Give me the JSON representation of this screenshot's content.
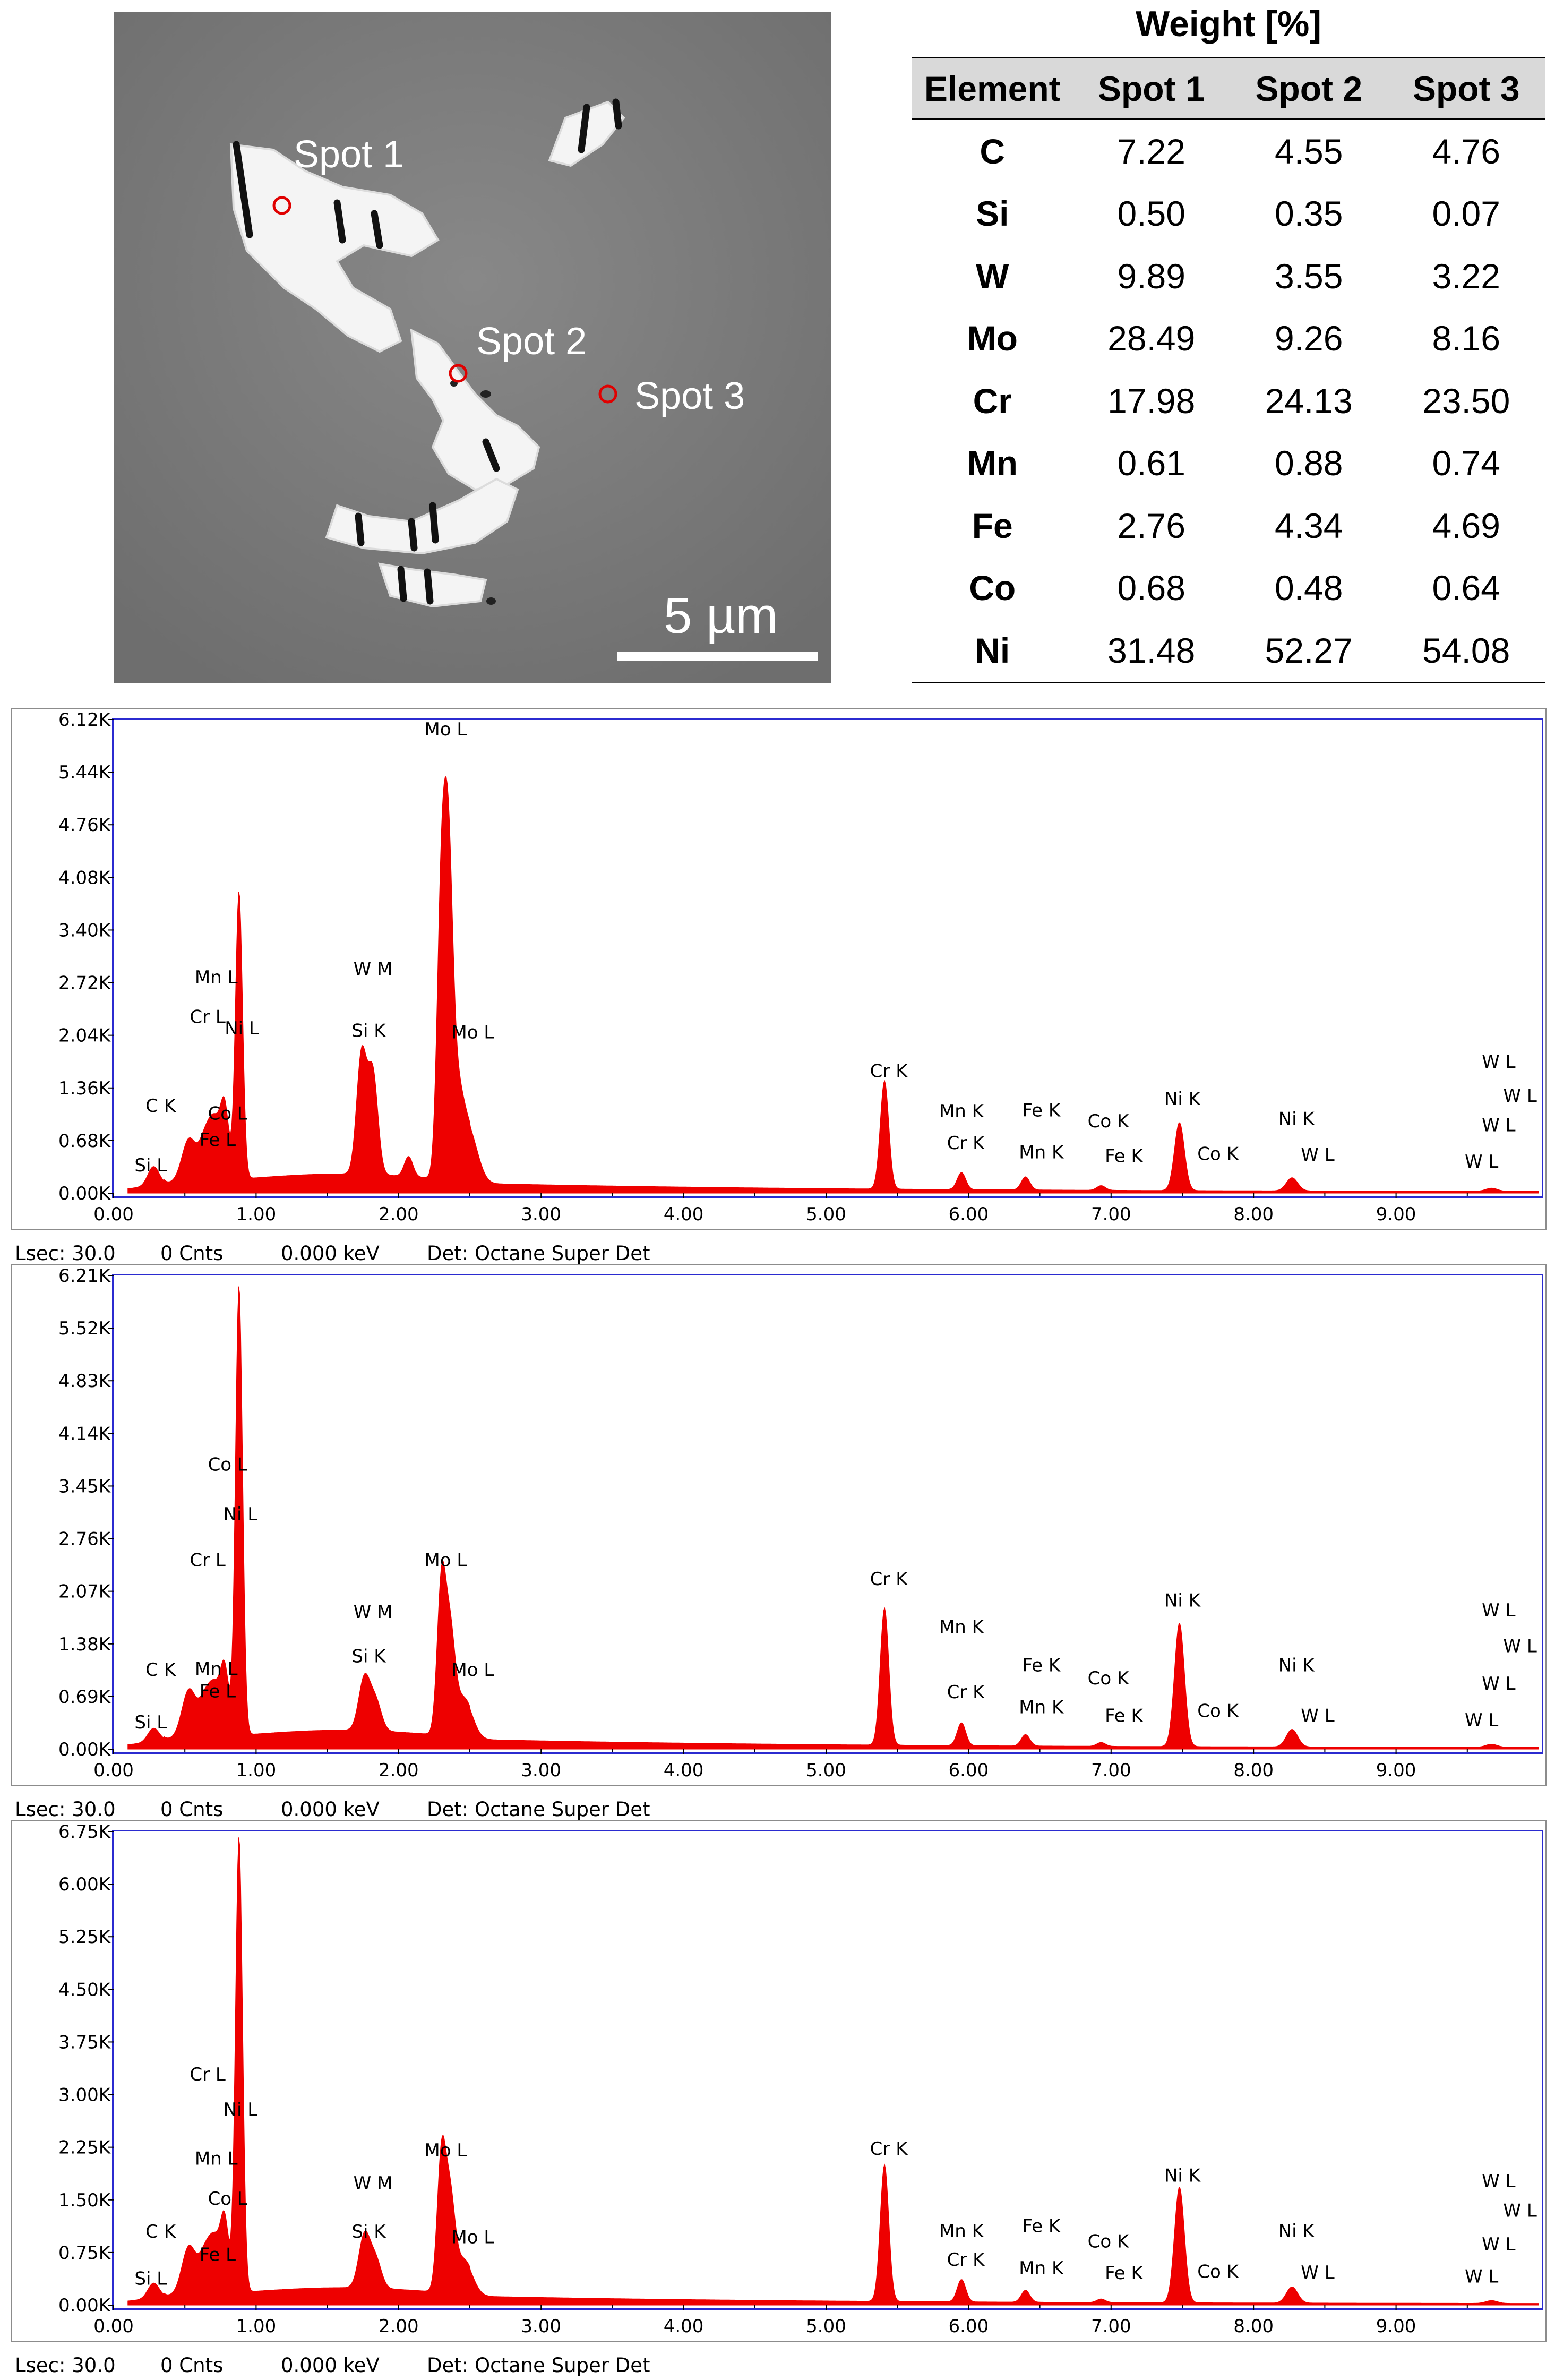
{
  "micrograph": {
    "spot_labels": [
      "Spot 1",
      "Spot 2",
      "Spot 3"
    ],
    "scale_label": "5 µm"
  },
  "composition_table": {
    "title": "Weight [%]",
    "headers": [
      "Element",
      "Spot 1",
      "Spot 2",
      "Spot 3"
    ],
    "rows": [
      [
        "C",
        "7.22",
        "4.55",
        "4.76"
      ],
      [
        "Si",
        "0.50",
        "0.35",
        "0.07"
      ],
      [
        "W",
        "9.89",
        "3.55",
        "3.22"
      ],
      [
        "Mo",
        "28.49",
        "9.26",
        "8.16"
      ],
      [
        "Cr",
        "17.98",
        "24.13",
        "23.50"
      ],
      [
        "Mn",
        "0.61",
        "0.88",
        "0.74"
      ],
      [
        "Fe",
        "2.76",
        "4.34",
        "4.69"
      ],
      [
        "Co",
        "0.68",
        "0.48",
        "0.64"
      ],
      [
        "Ni",
        "31.48",
        "52.27",
        "54.08"
      ]
    ]
  },
  "chart_data": [
    {
      "type": "area",
      "x_ticks": [
        "0.00",
        "1.00",
        "2.00",
        "3.00",
        "4.00",
        "5.00",
        "6.00",
        "7.00",
        "8.00",
        "9.00"
      ],
      "y_ticks": [
        "0.00K",
        "0.68K",
        "1.36K",
        "2.04K",
        "2.72K",
        "3.40K",
        "4.08K",
        "4.76K",
        "5.44K",
        "6.12K"
      ],
      "xlim": [
        0,
        10
      ],
      "ylim": [
        0,
        6120
      ],
      "color": "#ee0000",
      "peaks": [
        {
          "x": 0.28,
          "y": 250,
          "w": 0.04
        },
        {
          "x": 0.53,
          "y": 560,
          "w": 0.05
        },
        {
          "x": 0.64,
          "y": 500,
          "w": 0.04
        },
        {
          "x": 0.71,
          "y": 700,
          "w": 0.04
        },
        {
          "x": 0.78,
          "y": 900,
          "w": 0.03
        },
        {
          "x": 0.88,
          "y": 3720,
          "w": 0.025
        },
        {
          "x": 1.74,
          "y": 1550,
          "w": 0.035
        },
        {
          "x": 1.82,
          "y": 1300,
          "w": 0.035
        },
        {
          "x": 2.07,
          "y": 260,
          "w": 0.03
        },
        {
          "x": 2.3,
          "y": 3500,
          "w": 0.03
        },
        {
          "x": 2.35,
          "y": 3300,
          "w": 0.03
        },
        {
          "x": 2.4,
          "y": 1150,
          "w": 0.05
        },
        {
          "x": 2.5,
          "y": 600,
          "w": 0.06
        },
        {
          "x": 5.41,
          "y": 1400,
          "w": 0.03
        },
        {
          "x": 5.95,
          "y": 220,
          "w": 0.03
        },
        {
          "x": 6.4,
          "y": 170,
          "w": 0.03
        },
        {
          "x": 6.93,
          "y": 60,
          "w": 0.03
        },
        {
          "x": 7.48,
          "y": 880,
          "w": 0.035
        },
        {
          "x": 8.27,
          "y": 170,
          "w": 0.04
        },
        {
          "x": 9.67,
          "y": 40,
          "w": 0.04
        }
      ],
      "annotations": [
        {
          "text": "Mo L",
          "x": 2.33,
          "y": 6250
        },
        {
          "text": "Mn L",
          "x": 0.72,
          "y": 2710
        },
        {
          "text": "Cr L",
          "x": 0.66,
          "y": 2200
        },
        {
          "text": "Ni L",
          "x": 0.9,
          "y": 2050
        },
        {
          "text": "W  M",
          "x": 1.82,
          "y": 2820
        },
        {
          "text": "Si K",
          "x": 1.79,
          "y": 2020
        },
        {
          "text": "Mo L",
          "x": 2.52,
          "y": 2000
        },
        {
          "text": "C  K",
          "x": 0.33,
          "y": 1050
        },
        {
          "text": "Co L",
          "x": 0.8,
          "y": 950
        },
        {
          "text": "Fe L",
          "x": 0.73,
          "y": 610
        },
        {
          "text": "Si L",
          "x": 0.26,
          "y": 280
        },
        {
          "text": "Cr K",
          "x": 5.44,
          "y": 1500
        },
        {
          "text": "Mn K",
          "x": 5.95,
          "y": 980
        },
        {
          "text": "Cr K",
          "x": 5.98,
          "y": 570
        },
        {
          "text": "Fe K",
          "x": 6.51,
          "y": 990
        },
        {
          "text": "Mn K",
          "x": 6.51,
          "y": 450
        },
        {
          "text": "Co K",
          "x": 6.98,
          "y": 850
        },
        {
          "text": "Fe K",
          "x": 7.09,
          "y": 400
        },
        {
          "text": "Ni K",
          "x": 7.5,
          "y": 1140
        },
        {
          "text": "Co K",
          "x": 7.75,
          "y": 430
        },
        {
          "text": "Ni K",
          "x": 8.3,
          "y": 880
        },
        {
          "text": "W  L",
          "x": 8.45,
          "y": 420
        },
        {
          "text": "W  L",
          "x": 9.72,
          "y": 1620
        },
        {
          "text": "W  L",
          "x": 9.87,
          "y": 1180
        },
        {
          "text": "W  L",
          "x": 9.72,
          "y": 800
        },
        {
          "text": "W  L",
          "x": 9.6,
          "y": 330
        }
      ],
      "footer": {
        "lsec": "Lsec: 30.0",
        "cnts": "0 Cnts",
        "kev": "0.000 keV",
        "det": "Det: Octane Super Det"
      }
    },
    {
      "type": "area",
      "x_ticks": [
        "0.00",
        "1.00",
        "2.00",
        "3.00",
        "4.00",
        "5.00",
        "6.00",
        "7.00",
        "8.00",
        "9.00"
      ],
      "y_ticks": [
        "0.00K",
        "0.69K",
        "1.38K",
        "2.07K",
        "2.76K",
        "3.45K",
        "4.14K",
        "4.83K",
        "5.52K",
        "6.21K"
      ],
      "xlim": [
        0,
        10
      ],
      "ylim": [
        0,
        6210
      ],
      "color": "#ee0000",
      "peaks": [
        {
          "x": 0.28,
          "y": 180,
          "w": 0.04
        },
        {
          "x": 0.53,
          "y": 640,
          "w": 0.05
        },
        {
          "x": 0.64,
          "y": 450,
          "w": 0.04
        },
        {
          "x": 0.71,
          "y": 600,
          "w": 0.04
        },
        {
          "x": 0.78,
          "y": 850,
          "w": 0.03
        },
        {
          "x": 0.88,
          "y": 5900,
          "w": 0.025
        },
        {
          "x": 1.76,
          "y": 690,
          "w": 0.04
        },
        {
          "x": 1.84,
          "y": 380,
          "w": 0.04
        },
        {
          "x": 2.3,
          "y": 1900,
          "w": 0.03
        },
        {
          "x": 2.36,
          "y": 1300,
          "w": 0.035
        },
        {
          "x": 2.46,
          "y": 500,
          "w": 0.06
        },
        {
          "x": 5.41,
          "y": 1800,
          "w": 0.03
        },
        {
          "x": 5.95,
          "y": 300,
          "w": 0.03
        },
        {
          "x": 6.4,
          "y": 150,
          "w": 0.03
        },
        {
          "x": 6.93,
          "y": 50,
          "w": 0.03
        },
        {
          "x": 7.48,
          "y": 1620,
          "w": 0.035
        },
        {
          "x": 8.27,
          "y": 230,
          "w": 0.04
        },
        {
          "x": 9.67,
          "y": 40,
          "w": 0.04
        }
      ],
      "annotations": [
        {
          "text": "Co L",
          "x": 0.8,
          "y": 3650
        },
        {
          "text": "Ni L",
          "x": 0.89,
          "y": 3000
        },
        {
          "text": "Cr L",
          "x": 0.66,
          "y": 2400
        },
        {
          "text": "Mo L",
          "x": 2.33,
          "y": 2400
        },
        {
          "text": "W  M",
          "x": 1.82,
          "y": 1720
        },
        {
          "text": "C  K",
          "x": 0.33,
          "y": 960
        },
        {
          "text": "Mn L",
          "x": 0.72,
          "y": 970
        },
        {
          "text": "Fe L",
          "x": 0.73,
          "y": 680
        },
        {
          "text": "Si K",
          "x": 1.79,
          "y": 1140
        },
        {
          "text": "Mo L",
          "x": 2.52,
          "y": 960
        },
        {
          "text": "Si L",
          "x": 0.26,
          "y": 270
        },
        {
          "text": "Cr K",
          "x": 5.44,
          "y": 2150
        },
        {
          "text": "Mn K",
          "x": 5.95,
          "y": 1520
        },
        {
          "text": "Cr K",
          "x": 5.98,
          "y": 670
        },
        {
          "text": "Fe K",
          "x": 6.51,
          "y": 1020
        },
        {
          "text": "Mn K",
          "x": 6.51,
          "y": 470
        },
        {
          "text": "Co K",
          "x": 6.98,
          "y": 850
        },
        {
          "text": "Fe K",
          "x": 7.09,
          "y": 360
        },
        {
          "text": "Ni K",
          "x": 7.5,
          "y": 1870
        },
        {
          "text": "Co K",
          "x": 7.75,
          "y": 420
        },
        {
          "text": "Ni K",
          "x": 8.3,
          "y": 1020
        },
        {
          "text": "W  L",
          "x": 8.45,
          "y": 360
        },
        {
          "text": "W  L",
          "x": 9.72,
          "y": 1740
        },
        {
          "text": "W  L",
          "x": 9.87,
          "y": 1270
        },
        {
          "text": "W  L",
          "x": 9.72,
          "y": 780
        },
        {
          "text": "W  L",
          "x": 9.6,
          "y": 300
        }
      ],
      "footer": {
        "lsec": "Lsec: 30.0",
        "cnts": "0 Cnts",
        "kev": "0.000 keV",
        "det": "Det: Octane Super Det"
      }
    },
    {
      "type": "area",
      "x_ticks": [
        "0.00",
        "1.00",
        "2.00",
        "3.00",
        "4.00",
        "5.00",
        "6.00",
        "7.00",
        "8.00",
        "9.00"
      ],
      "y_ticks": [
        "0.00K",
        "0.75K",
        "1.50K",
        "2.25K",
        "3.00K",
        "3.75K",
        "4.50K",
        "5.25K",
        "6.00K",
        "6.75K"
      ],
      "xlim": [
        0,
        10
      ],
      "ylim": [
        0,
        6750
      ],
      "color": "#ee0000",
      "peaks": [
        {
          "x": 0.28,
          "y": 220,
          "w": 0.04
        },
        {
          "x": 0.53,
          "y": 700,
          "w": 0.05
        },
        {
          "x": 0.64,
          "y": 520,
          "w": 0.04
        },
        {
          "x": 0.71,
          "y": 700,
          "w": 0.04
        },
        {
          "x": 0.78,
          "y": 1000,
          "w": 0.03
        },
        {
          "x": 0.88,
          "y": 6500,
          "w": 0.025
        },
        {
          "x": 1.76,
          "y": 750,
          "w": 0.04
        },
        {
          "x": 1.84,
          "y": 400,
          "w": 0.04
        },
        {
          "x": 2.3,
          "y": 1850,
          "w": 0.03
        },
        {
          "x": 2.36,
          "y": 1300,
          "w": 0.035
        },
        {
          "x": 2.46,
          "y": 480,
          "w": 0.06
        },
        {
          "x": 5.41,
          "y": 1950,
          "w": 0.03
        },
        {
          "x": 5.95,
          "y": 320,
          "w": 0.03
        },
        {
          "x": 6.4,
          "y": 170,
          "w": 0.03
        },
        {
          "x": 6.93,
          "y": 50,
          "w": 0.03
        },
        {
          "x": 7.48,
          "y": 1650,
          "w": 0.035
        },
        {
          "x": 8.27,
          "y": 230,
          "w": 0.04
        },
        {
          "x": 9.67,
          "y": 40,
          "w": 0.04
        }
      ],
      "annotations": [
        {
          "text": "Cr L",
          "x": 0.66,
          "y": 3200
        },
        {
          "text": "Ni L",
          "x": 0.89,
          "y": 2700
        },
        {
          "text": "Mn L",
          "x": 0.72,
          "y": 2000
        },
        {
          "text": "Mo L",
          "x": 2.33,
          "y": 2120
        },
        {
          "text": "W  M",
          "x": 1.82,
          "y": 1650
        },
        {
          "text": "Co L",
          "x": 0.8,
          "y": 1430
        },
        {
          "text": "Si K",
          "x": 1.79,
          "y": 960
        },
        {
          "text": "Mo L",
          "x": 2.52,
          "y": 880
        },
        {
          "text": "C  K",
          "x": 0.33,
          "y": 960
        },
        {
          "text": "Fe L",
          "x": 0.73,
          "y": 630
        },
        {
          "text": "Si L",
          "x": 0.26,
          "y": 290
        },
        {
          "text": "Cr K",
          "x": 5.44,
          "y": 2140
        },
        {
          "text": "Mn K",
          "x": 5.95,
          "y": 970
        },
        {
          "text": "Cr K",
          "x": 5.98,
          "y": 560
        },
        {
          "text": "Fe K",
          "x": 6.51,
          "y": 1040
        },
        {
          "text": "Mn K",
          "x": 6.51,
          "y": 440
        },
        {
          "text": "Co K",
          "x": 6.98,
          "y": 820
        },
        {
          "text": "Fe K",
          "x": 7.09,
          "y": 370
        },
        {
          "text": "Ni K",
          "x": 7.5,
          "y": 1760
        },
        {
          "text": "Co K",
          "x": 7.75,
          "y": 390
        },
        {
          "text": "Ni K",
          "x": 8.3,
          "y": 970
        },
        {
          "text": "W  L",
          "x": 8.45,
          "y": 380
        },
        {
          "text": "W  L",
          "x": 9.72,
          "y": 1680
        },
        {
          "text": "W  L",
          "x": 9.87,
          "y": 1260
        },
        {
          "text": "W  L",
          "x": 9.72,
          "y": 780
        },
        {
          "text": "W  L",
          "x": 9.6,
          "y": 320
        }
      ],
      "footer": {
        "lsec": "Lsec: 30.0",
        "cnts": "0 Cnts",
        "kev": "0.000 keV",
        "det": "Det: Octane Super Det"
      }
    }
  ]
}
